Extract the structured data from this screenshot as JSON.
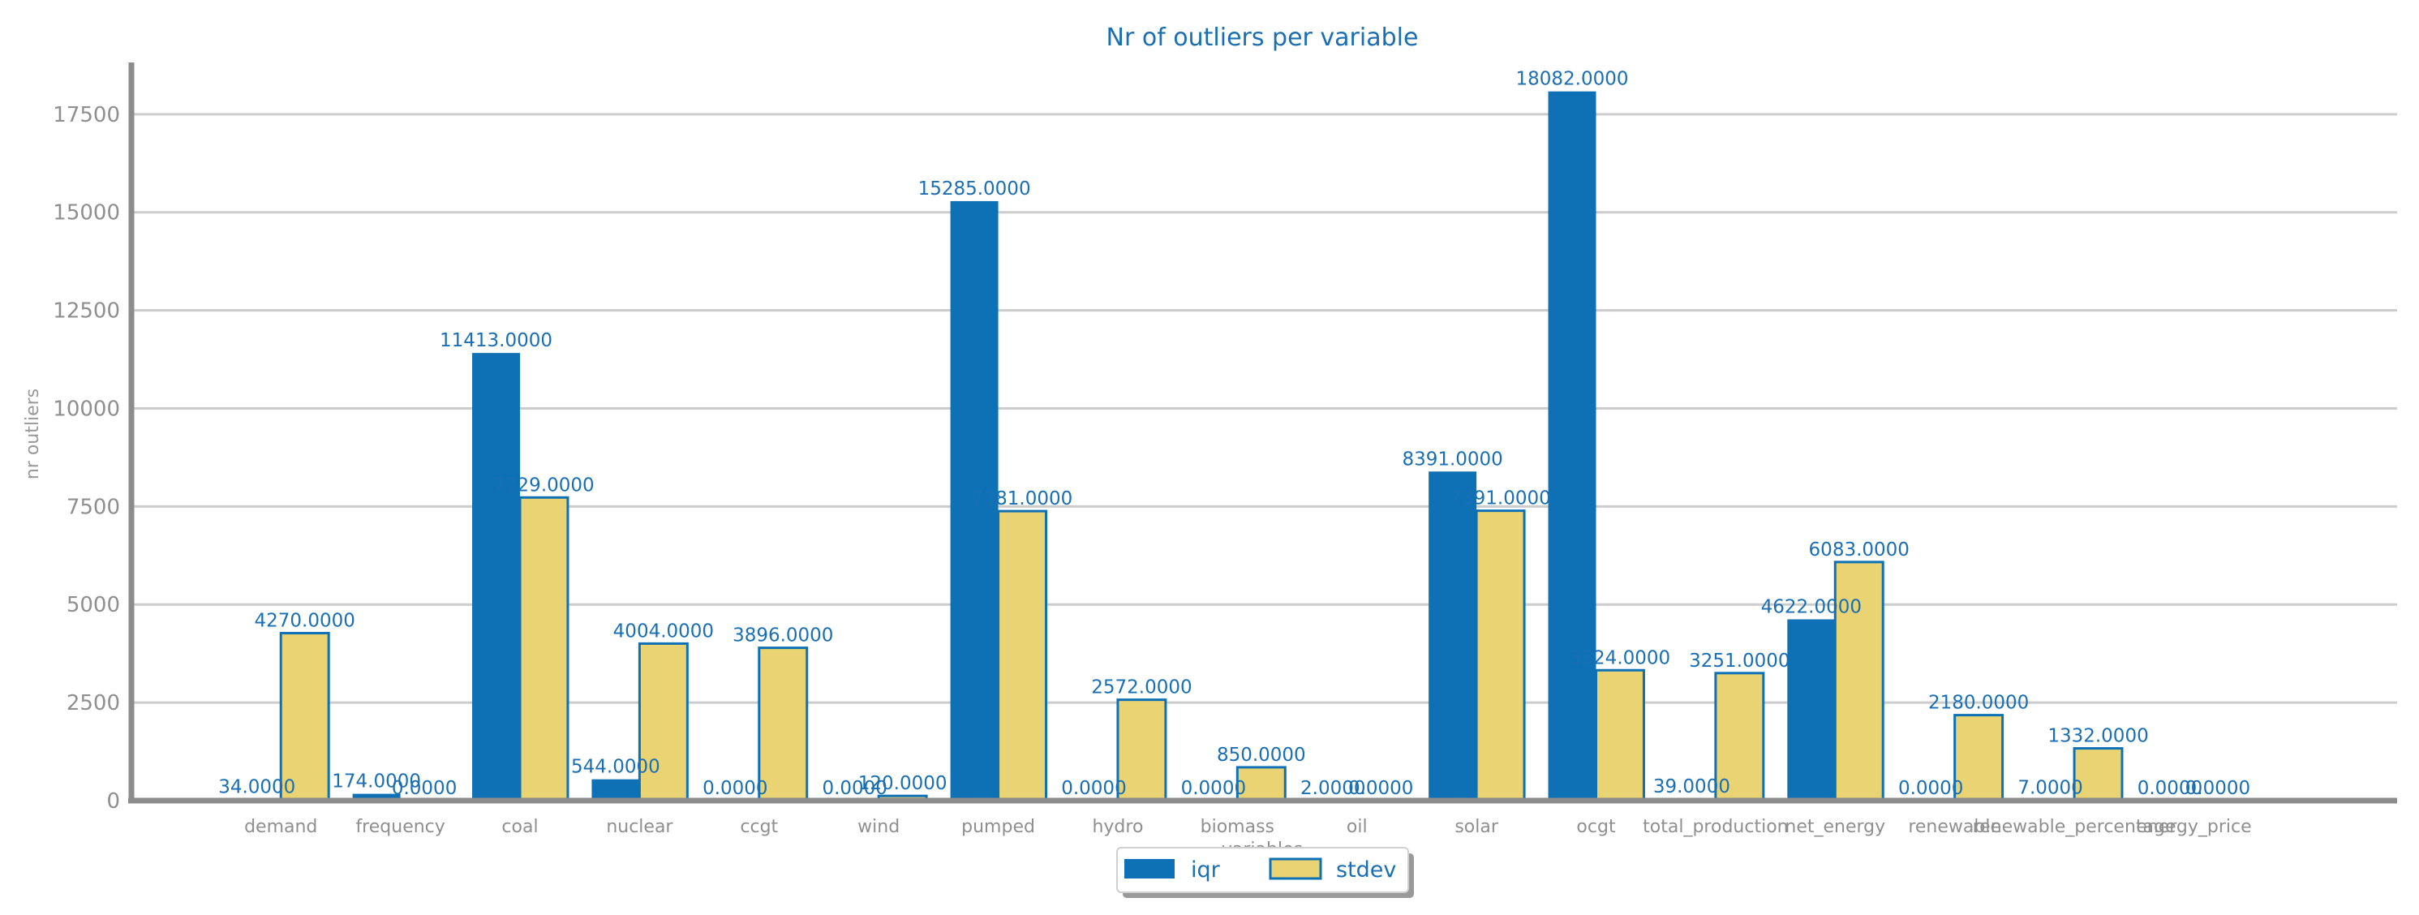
{
  "chart_data": {
    "type": "bar",
    "title": "Nr of outliers per variable",
    "xlabel": "variables",
    "ylabel": "nr outliers",
    "ylim": [
      0,
      19000
    ],
    "yticks": [
      0,
      2500,
      5000,
      7500,
      10000,
      12500,
      15000,
      17500
    ],
    "ytick_labels": [
      "0",
      "2500",
      "5000",
      "7500",
      "10000",
      "12500",
      "15000",
      "17500"
    ],
    "grid": true,
    "legend_position": "bottom-center",
    "categories": [
      "demand",
      "frequency",
      "coal",
      "nuclear",
      "ccgt",
      "wind",
      "pumped",
      "hydro",
      "biomass",
      "oil",
      "solar",
      "ocgt",
      "total_production",
      "net_energy",
      "renewable",
      "renewable_percentage",
      "energy_price"
    ],
    "series": [
      {
        "name": "iqr",
        "color": "#0e71b5",
        "values": [
          34,
          174,
          11413,
          544,
          0,
          0,
          15285,
          0,
          0,
          2,
          8391,
          18082,
          39,
          4622,
          0,
          7,
          0
        ],
        "labels": [
          "34.0000",
          "174.0000",
          "11413.0000",
          "544.0000",
          "0.0000",
          "0.0000",
          "15285.0000",
          "0.0000",
          "0.0000",
          "2.0000",
          "8391.0000",
          "18082.0000",
          "39.0000",
          "4622.0000",
          "0.0000",
          "7.0000",
          "0.0000"
        ]
      },
      {
        "name": "stdev",
        "color": "#e9d372",
        "edge_color": "#0e71b5",
        "values": [
          4270,
          0,
          7729,
          4004,
          3896,
          120,
          7381,
          2572,
          850,
          0,
          7391,
          3324,
          3251,
          6083,
          2180,
          1332,
          0
        ],
        "labels": [
          "4270.0000",
          "0.0000",
          "7729.0000",
          "4004.0000",
          "3896.0000",
          "120.0000",
          "7381.0000",
          "2572.0000",
          "850.0000",
          "0.0000",
          "7391.0000",
          "3324.0000",
          "3251.0000",
          "6083.0000",
          "2180.0000",
          "1332.0000",
          "0.0000"
        ]
      }
    ]
  }
}
